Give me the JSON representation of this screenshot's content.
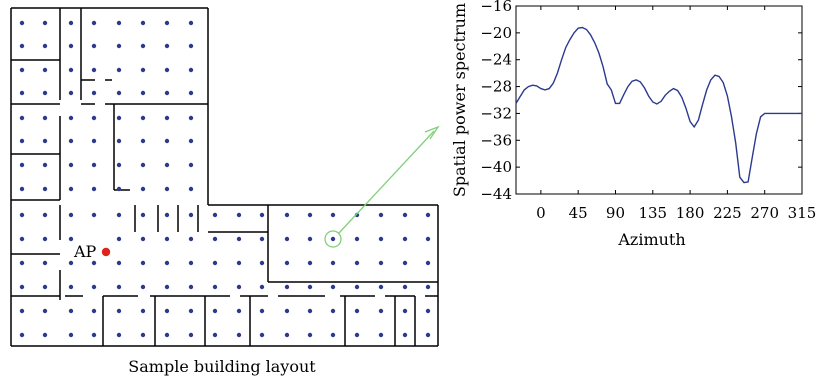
{
  "layout_caption": "Sample building layout",
  "ap_label": "AP",
  "colors": {
    "wall": "#000000",
    "dot": "#2b3a8f",
    "ap": "#e0241b",
    "pointer": "#7fd07a",
    "curve": "#2b3a8f"
  },
  "chart_data": {
    "type": "line",
    "title": "",
    "xlabel": "Azimuth",
    "ylabel": "Spatial power spectrum",
    "xlim": [
      -30,
      315
    ],
    "ylim": [
      -44,
      -16
    ],
    "xticks": [
      0,
      45,
      90,
      135,
      180,
      225,
      270,
      315
    ],
    "yticks": [
      -16,
      -20,
      -24,
      -28,
      -32,
      -36,
      -40,
      -44
    ],
    "grid": false,
    "series": [
      {
        "x": [
          -30,
          -25,
          -20,
          -15,
          -10,
          -5,
          0,
          5,
          10,
          15,
          20,
          25,
          30,
          35,
          40,
          45,
          50,
          55,
          60,
          65,
          70,
          75,
          80,
          85,
          90,
          95,
          100,
          105,
          110,
          115,
          120,
          125,
          130,
          135,
          140,
          145,
          150,
          155,
          160,
          165,
          170,
          175,
          180,
          185,
          190,
          195,
          200,
          205,
          210,
          215,
          220,
          225,
          230,
          235,
          240,
          245,
          250,
          255,
          260,
          265,
          270,
          275,
          280,
          285,
          290,
          295,
          300,
          305,
          310,
          315
        ],
        "y": [
          -30.5,
          -29.5,
          -28.5,
          -28.0,
          -27.8,
          -27.9,
          -28.3,
          -28.5,
          -28.3,
          -27.5,
          -26.0,
          -24.0,
          -22.2,
          -21.0,
          -20.0,
          -19.3,
          -19.2,
          -19.5,
          -20.3,
          -21.5,
          -23.0,
          -25.0,
          -27.6,
          -28.5,
          -30.5,
          -30.5,
          -29.2,
          -28.0,
          -27.2,
          -27.0,
          -27.3,
          -28.2,
          -29.4,
          -30.3,
          -30.6,
          -30.2,
          -29.3,
          -28.7,
          -28.3,
          -28.6,
          -29.6,
          -31.2,
          -33.2,
          -34.0,
          -33.0,
          -30.7,
          -28.5,
          -27.0,
          -26.3,
          -26.5,
          -27.4,
          -29.4,
          -32.5,
          -36.4,
          -41.5,
          -42.3,
          -42.2,
          -38.5,
          -35.0,
          -32.5,
          -32.0,
          -32.0,
          -32.0,
          -32.0,
          -32.0,
          -32.0,
          -32.0,
          -32.0,
          -32.0,
          -32.0
        ]
      }
    ]
  }
}
